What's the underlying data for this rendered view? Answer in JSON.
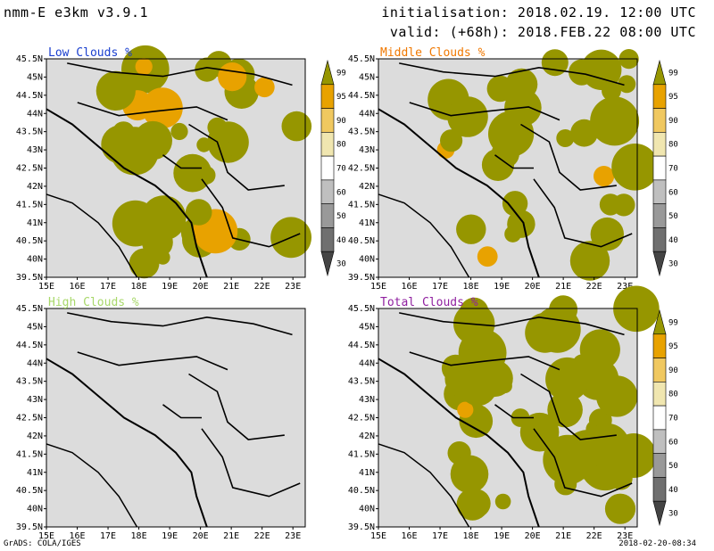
{
  "header": {
    "model": "nmm-E e3km v3.9.1",
    "initialisation": "initialisation: 2018.02.19. 12:00 UTC",
    "valid": "valid: (+68h): 2018.FEB.22 08:00 UTC"
  },
  "footer": {
    "credit": "GrADS: COLA/IGES",
    "timestamp": "2018-02-20-08:34"
  },
  "colors": {
    "background": "#ffffff",
    "land_gray": "#dcdcdc",
    "olive": "#969600",
    "title_low": "#1a3fcf",
    "title_middle": "#f07800",
    "title_high": "#a8d86a",
    "title_total": "#9020a0"
  },
  "chart_data": [
    {
      "type": "heatmap",
      "title": "Low Clouds %",
      "title_color": "#1a3fcf",
      "xticks": [
        "15E",
        "16E",
        "17E",
        "18E",
        "19E",
        "20E",
        "21E",
        "22E",
        "23E"
      ],
      "yticks": [
        "45.5N",
        "45N",
        "44.5N",
        "44N",
        "43.5N",
        "43N",
        "42.5N",
        "42N",
        "41.5N",
        "41N",
        "40.5N",
        "40N",
        "39.5N"
      ],
      "xlim": [
        15,
        23.4
      ],
      "ylim": [
        39.5,
        45.5
      ],
      "colorbar": {
        "levels": [
          "99",
          "95",
          "90",
          "80",
          "70",
          "60",
          "50",
          "40",
          "30"
        ],
        "colors": [
          "#969600",
          "#e8a200",
          "#f0c860",
          "#f0e6b0",
          "#ffffff",
          "#bfbfbf",
          "#999999",
          "#6f6f6f",
          "#444444"
        ]
      },
      "coverage_fraction": 0.6
    },
    {
      "type": "heatmap",
      "title": "Middle Clouds %",
      "title_color": "#f07800",
      "xticks": [
        "15E",
        "16E",
        "17E",
        "18E",
        "19E",
        "20E",
        "21E",
        "22E",
        "23E"
      ],
      "yticks": [
        "45.5N",
        "45N",
        "44.5N",
        "44N",
        "43.5N",
        "43N",
        "42.5N",
        "42N",
        "41.5N",
        "41N",
        "40.5N",
        "40N",
        "39.5N"
      ],
      "xlim": [
        15,
        23.4
      ],
      "ylim": [
        39.5,
        45.5
      ],
      "colorbar": {
        "levels": [
          "99",
          "95",
          "90",
          "80",
          "70",
          "60",
          "50",
          "40",
          "30"
        ],
        "colors": [
          "#969600",
          "#e8a200",
          "#f0c860",
          "#f0e6b0",
          "#ffffff",
          "#bfbfbf",
          "#999999",
          "#6f6f6f",
          "#444444"
        ]
      },
      "coverage_fraction": 0.5
    },
    {
      "type": "heatmap",
      "title": "High Clouds %",
      "title_color": "#a8d86a",
      "xticks": [
        "15E",
        "16E",
        "17E",
        "18E",
        "19E",
        "20E",
        "21E",
        "22E",
        "23E"
      ],
      "yticks": [
        "45.5N",
        "45N",
        "44.5N",
        "44N",
        "43.5N",
        "43N",
        "42.5N",
        "42N",
        "41.5N",
        "41N",
        "40.5N",
        "40N",
        "39.5N"
      ],
      "xlim": [
        15,
        23.4
      ],
      "ylim": [
        39.5,
        45.5
      ],
      "colorbar": null,
      "coverage_fraction": 0.0
    },
    {
      "type": "heatmap",
      "title": "Total Clouds %",
      "title_color": "#9020a0",
      "xticks": [
        "15E",
        "16E",
        "17E",
        "18E",
        "19E",
        "20E",
        "21E",
        "22E",
        "23E"
      ],
      "yticks": [
        "45.5N",
        "45N",
        "44.5N",
        "44N",
        "43.5N",
        "43N",
        "42.5N",
        "42N",
        "41.5N",
        "41N",
        "40.5N",
        "40N",
        "39.5N"
      ],
      "xlim": [
        15,
        23.4
      ],
      "ylim": [
        39.5,
        45.5
      ],
      "colorbar": {
        "levels": [
          "99",
          "95",
          "90",
          "80",
          "70",
          "60",
          "50",
          "40",
          "30"
        ],
        "colors": [
          "#969600",
          "#e8a200",
          "#f0c860",
          "#f0e6b0",
          "#ffffff",
          "#bfbfbf",
          "#999999",
          "#6f6f6f",
          "#444444"
        ]
      },
      "coverage_fraction": 0.7
    }
  ]
}
